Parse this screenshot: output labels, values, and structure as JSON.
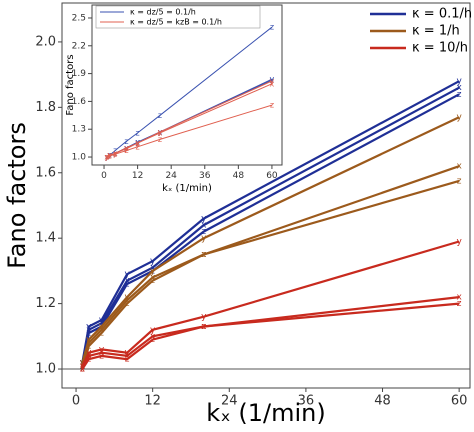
{
  "chart_data": [
    {
      "type": "line",
      "ylabel": "Fano factors",
      "xlabel": "kₓ (1/min)",
      "x": [
        1,
        2,
        4,
        8,
        12,
        20,
        60
      ],
      "xlim": [
        -2.2,
        61.7
      ],
      "ylim": [
        0.942,
        2.119
      ],
      "xticks": [
        0,
        12,
        24,
        36,
        48,
        60
      ],
      "yticks": [
        {
          "value": 1,
          "label": "1.0"
        },
        1.2,
        1.4,
        1.6,
        1.8,
        {
          "value": 2,
          "label": "2.0"
        }
      ],
      "hline": 1,
      "legend": [
        {
          "name": "κ = 0.1/h",
          "color": "#1f2f96"
        },
        {
          "name": "κ = 1/h",
          "color": "#9c5a1c"
        },
        {
          "name": "κ = 10/h",
          "color": "#c82a1e"
        }
      ],
      "series": [
        {
          "marker": "y",
          "color": "#1f2f96",
          "values": [
            1.02,
            1.13,
            1.15,
            1.29,
            1.33,
            1.46,
            1.88
          ]
        },
        {
          "marker": "x",
          "color": "#1f2f96",
          "values": [
            1.01,
            1.12,
            1.14,
            1.27,
            1.31,
            1.44,
            1.86
          ]
        },
        {
          "marker": "z",
          "color": "#1f2f96",
          "values": [
            1.01,
            1.11,
            1.13,
            1.26,
            1.3,
            1.42,
            1.84
          ]
        },
        {
          "marker": "y",
          "color": "#9c5a1c",
          "values": [
            1.02,
            1.09,
            1.13,
            1.22,
            1.3,
            1.4,
            1.77
          ]
        },
        {
          "marker": "x",
          "color": "#9c5a1c",
          "values": [
            1.01,
            1.08,
            1.12,
            1.21,
            1.28,
            1.35,
            1.62
          ]
        },
        {
          "marker": "z",
          "color": "#9c5a1c",
          "values": [
            1.0,
            1.07,
            1.11,
            1.2,
            1.27,
            1.35,
            1.575
          ]
        },
        {
          "marker": "y",
          "color": "#c82a1e",
          "values": [
            1.01,
            1.05,
            1.06,
            1.05,
            1.12,
            1.16,
            1.39
          ]
        },
        {
          "marker": "x",
          "color": "#c82a1e",
          "values": [
            1.0,
            1.04,
            1.05,
            1.04,
            1.1,
            1.13,
            1.22
          ]
        },
        {
          "marker": "z",
          "color": "#c82a1e",
          "values": [
            1.0,
            1.03,
            1.04,
            1.03,
            1.09,
            1.13,
            1.2
          ]
        }
      ]
    },
    {
      "type": "line",
      "ylabel": "Fano factors",
      "xlabel": "kₓ (1/min)",
      "x": [
        1,
        2,
        4,
        8,
        12,
        20,
        60
      ],
      "xlim": [
        -4.3,
        63.6
      ],
      "ylim": [
        0.914,
        2.64
      ],
      "xticks": [
        0,
        12,
        24,
        36,
        48,
        60
      ],
      "yticks": [
        {
          "value": 1,
          "label": "1.0"
        },
        1.3,
        1.6,
        1.9,
        2.2,
        2.5
      ],
      "legend": [
        {
          "name": "κ = dz/5 = 0.1/h",
          "color": "#3a52b0"
        },
        {
          "name": "κ = dz/5 = kzB = 0.1/h",
          "color": "#e06050"
        }
      ],
      "series": [
        {
          "marker": "z",
          "color": "#3a52b0",
          "values": [
            1.0,
            1.02,
            1.07,
            1.17,
            1.26,
            1.45,
            2.4
          ]
        },
        {
          "marker": "y",
          "color": "#3a52b0",
          "values": [
            1.0,
            1.02,
            1.04,
            1.1,
            1.16,
            1.27,
            1.84
          ]
        },
        {
          "marker": "x",
          "color": "#3a52b0",
          "values": [
            1.0,
            1.02,
            1.04,
            1.1,
            1.16,
            1.27,
            1.83
          ]
        },
        {
          "marker": "y",
          "color": "#e06050",
          "values": [
            1.0,
            1.02,
            1.04,
            1.1,
            1.15,
            1.27,
            1.82
          ]
        },
        {
          "marker": "x",
          "color": "#e06050",
          "values": [
            1.0,
            1.02,
            1.04,
            1.09,
            1.15,
            1.26,
            1.79
          ]
        },
        {
          "marker": "z",
          "color": "#e06050",
          "values": [
            1.0,
            1.01,
            1.03,
            1.07,
            1.11,
            1.19,
            1.56
          ]
        }
      ]
    }
  ]
}
